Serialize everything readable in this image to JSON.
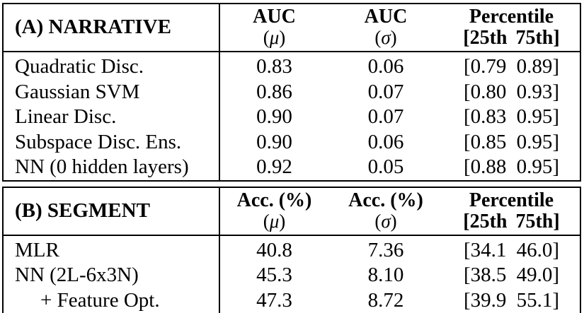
{
  "colors": {
    "text": "#000000",
    "border": "#000000",
    "background": "#ffffff"
  },
  "tables": [
    {
      "title": "(A) NARRATIVE",
      "columns": [
        {
          "top": "AUC",
          "paren_open": "(",
          "symbol": "μ",
          "paren_close": ")"
        },
        {
          "top": "AUC",
          "paren_open": "(",
          "symbol": "σ",
          "paren_close": ")"
        },
        {
          "top": "Percentile",
          "bottom": "[25th 75th]"
        }
      ],
      "rows": [
        {
          "label": "Quadratic Disc.",
          "mean": "0.83",
          "std": "0.06",
          "percentile": "[0.79 0.89]"
        },
        {
          "label": "Gaussian SVM",
          "mean": "0.86",
          "std": "0.07",
          "percentile": "[0.80 0.93]"
        },
        {
          "label": "Linear Disc.",
          "mean": "0.90",
          "std": "0.07",
          "percentile": "[0.83 0.95]"
        },
        {
          "label": "Subspace Disc. Ens.",
          "mean": "0.90",
          "std": "0.06",
          "percentile": "[0.85 0.95]"
        },
        {
          "label": "NN (0 hidden layers)",
          "mean": "0.92",
          "std": "0.05",
          "percentile": "[0.88 0.95]"
        }
      ]
    },
    {
      "title": "(B) SEGMENT",
      "columns": [
        {
          "top": "Acc. (%)",
          "paren_open": "(",
          "symbol": "μ",
          "paren_close": ")"
        },
        {
          "top": "Acc. (%)",
          "paren_open": "(",
          "symbol": "σ",
          "paren_close": ")"
        },
        {
          "top": "Percentile",
          "bottom": "[25th 75th]"
        }
      ],
      "rows": [
        {
          "label": "MLR",
          "mean": "40.8",
          "std": "7.36",
          "percentile": "[34.1 46.0]"
        },
        {
          "label": "NN (2L-6x3N)",
          "mean": "45.3",
          "std": "8.10",
          "percentile": "[38.5 49.0]"
        },
        {
          "label": "+ Feature Opt.",
          "mean": "47.3",
          "std": "8.72",
          "percentile": "[39.9 55.1]"
        }
      ]
    }
  ]
}
